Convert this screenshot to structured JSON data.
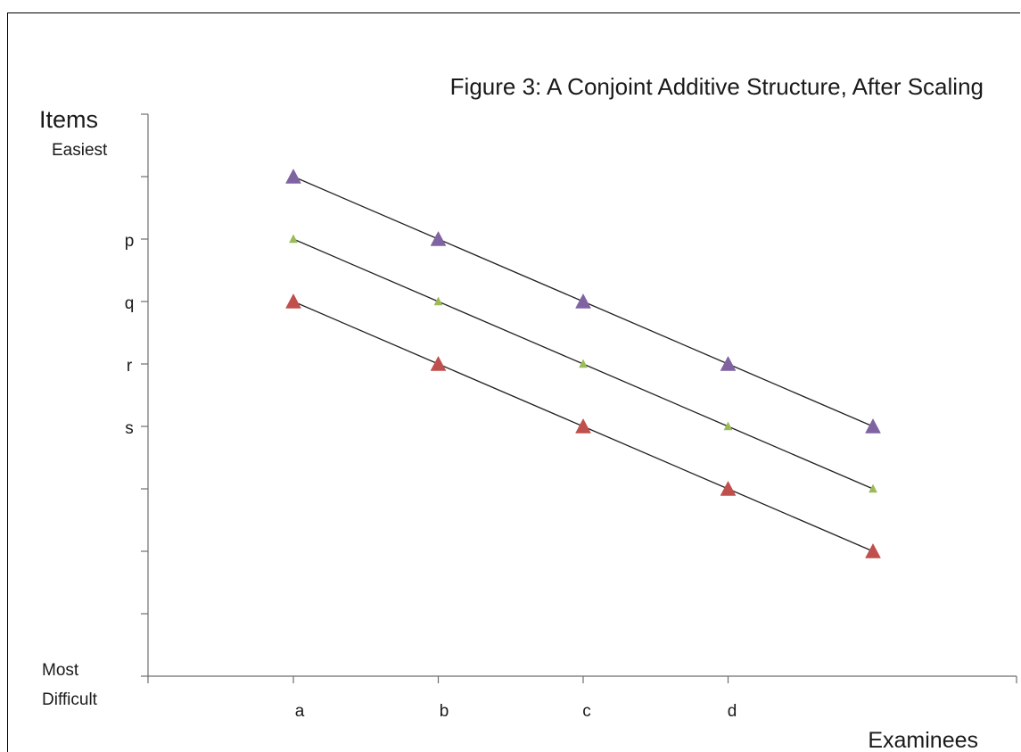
{
  "chart_data": {
    "type": "line",
    "title": "Figure 3:  A Conjoint Additive Structure, After Scaling",
    "xlabel": "Examinees",
    "ylabel": "Items",
    "y_top_label": "Easiest",
    "y_bottom_label": "Most Difficult",
    "categories": [
      "a",
      "b",
      "c",
      "d",
      ""
    ],
    "x_tick_labels": [
      "a",
      "b",
      "c",
      "d"
    ],
    "x_ticks": 6,
    "y_tick_labels": [
      "p",
      "q",
      "r",
      "s"
    ],
    "ylim": [
      0,
      9
    ],
    "yticks": [
      0,
      1,
      2,
      3,
      4,
      5,
      6,
      7,
      8,
      9
    ],
    "series": [
      {
        "values": [
          8,
          7,
          6,
          5,
          4
        ],
        "color": "#8064a2",
        "marker": "triangle-large"
      },
      {
        "values": [
          7,
          6,
          5,
          4,
          3
        ],
        "color": "#9bbb59",
        "marker": "triangle-small"
      },
      {
        "values": [
          6,
          5,
          4,
          3,
          2
        ],
        "color": "#c0504d",
        "marker": "triangle-large"
      }
    ],
    "grid": false,
    "legend": "none"
  }
}
